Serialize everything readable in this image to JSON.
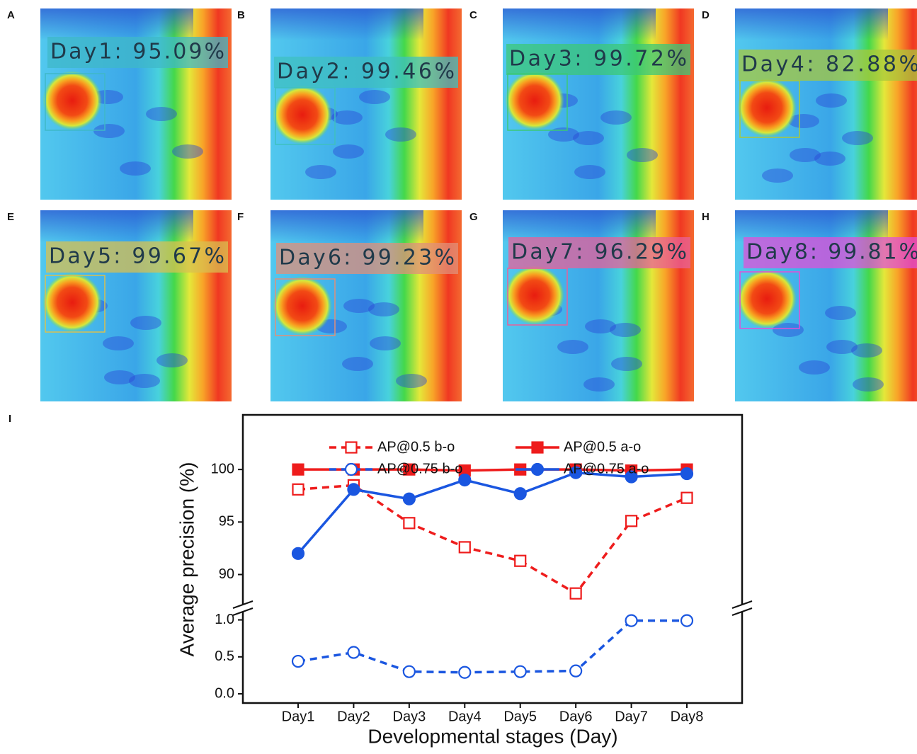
{
  "panels": [
    {
      "letter": "A",
      "label": "Day1: 95.09%",
      "box_color": "#3fb8c8"
    },
    {
      "letter": "B",
      "label": "Day2: 99.46%",
      "box_color": "#3fc0c0"
    },
    {
      "letter": "C",
      "label": "Day3: 99.72%",
      "box_color": "#3cc878"
    },
    {
      "letter": "D",
      "label": "Day4: 82.88%",
      "box_color": "#a8c83c"
    },
    {
      "letter": "E",
      "label": "Day5: 99.67%",
      "box_color": "#d8c050"
    },
    {
      "letter": "F",
      "label": "Day6: 99.23%",
      "box_color": "#e0907a"
    },
    {
      "letter": "G",
      "label": "Day7: 96.29%",
      "box_color": "#e8609a"
    },
    {
      "letter": "H",
      "label": "Day8: 99.81%",
      "box_color": "#e050d8"
    }
  ],
  "chart_data": {
    "type": "line",
    "panel_letter": "I",
    "x_label": "Developmental stages (Day)",
    "y_label": "Average precision (%)",
    "categories": [
      "Day1",
      "Day2",
      "Day3",
      "Day4",
      "Day5",
      "Day6",
      "Day7",
      "Day8"
    ],
    "ylim": [
      [
        0,
        1.13
      ],
      [
        87,
        105.2
      ]
    ],
    "yticks": [
      {
        "value": 0,
        "label": "0.0"
      },
      0.5,
      {
        "value": 1,
        "label": "1.0"
      },
      90,
      95,
      100
    ],
    "axis_break": true,
    "series": [
      {
        "name": "AP@0.5  b-o",
        "color": "#ee1c1c",
        "line_style": "dashed",
        "marker": "square",
        "filled": false,
        "values": [
          98.1,
          98.5,
          94.9,
          92.6,
          91.3,
          88.2,
          95.1,
          97.3
        ]
      },
      {
        "name": "AP@0.5  a-o",
        "color": "#ee1c1c",
        "line_style": "solid",
        "marker": "square",
        "filled": true,
        "values": [
          100,
          100,
          100,
          99.9,
          100,
          100,
          99.9,
          100
        ]
      },
      {
        "name": "AP@0.75 b-o",
        "color": "#1a56e0",
        "line_style": "dashed",
        "marker": "circle",
        "filled": false,
        "values": [
          0.44,
          0.56,
          0.3,
          0.29,
          0.3,
          0.31,
          0.99,
          0.99
        ]
      },
      {
        "name": "AP@0.75 a-o",
        "color": "#1a56e0",
        "line_style": "solid",
        "marker": "circle",
        "filled": true,
        "values": [
          92.0,
          98.1,
          97.2,
          99.0,
          97.7,
          99.7,
          99.3,
          99.6
        ]
      }
    ]
  }
}
